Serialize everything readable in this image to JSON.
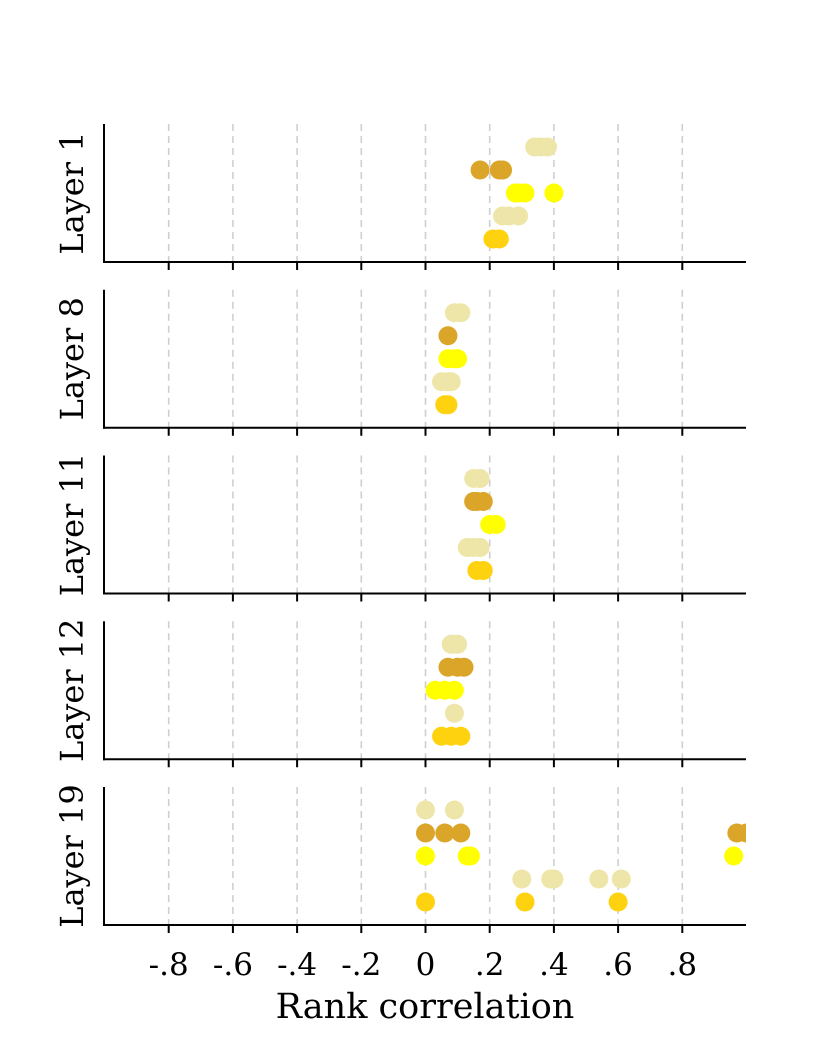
{
  "chart_data": {
    "type": "scatter",
    "xlabel": "Rank correlation",
    "xlim": [
      -1.0,
      1.0
    ],
    "xticks": [
      -0.8,
      -0.6,
      -0.4,
      -0.2,
      0,
      0.2,
      0.4,
      0.6,
      0.8
    ],
    "xtick_labels": [
      "-.8",
      "-.6",
      "-.4",
      "-.2",
      "0",
      ".2",
      ".4",
      ".6",
      ".8"
    ],
    "grid": "vertical dashed",
    "row_colors": [
      "#eee6a8",
      "#daa528",
      "#ffff00",
      "#eee6a8",
      "#ffd20f"
    ],
    "panels": [
      {
        "label": "Layer 1",
        "rows": [
          [
            0.34,
            0.36,
            0.38
          ],
          [
            0.17,
            0.23,
            0.24
          ],
          [
            0.28,
            0.29,
            0.31,
            0.4
          ],
          [
            0.24,
            0.26,
            0.29
          ],
          [
            0.21,
            0.23
          ]
        ]
      },
      {
        "label": "Layer 8",
        "rows": [
          [
            0.09,
            0.11
          ],
          [
            0.07
          ],
          [
            0.07,
            0.09,
            0.1
          ],
          [
            0.05,
            0.07,
            0.08
          ],
          [
            0.06,
            0.07
          ]
        ]
      },
      {
        "label": "Layer 11",
        "rows": [
          [
            0.15,
            0.17
          ],
          [
            0.15,
            0.16,
            0.18
          ],
          [
            0.2,
            0.22
          ],
          [
            0.13,
            0.15,
            0.17
          ],
          [
            0.16,
            0.18
          ]
        ]
      },
      {
        "label": "Layer 12",
        "rows": [
          [
            0.08,
            0.09,
            0.1
          ],
          [
            0.07,
            0.1,
            0.12
          ],
          [
            0.03,
            0.06,
            0.09
          ],
          [
            0.09
          ],
          [
            0.05,
            0.08,
            0.11
          ]
        ]
      },
      {
        "label": "Layer 19",
        "rows": [
          [
            0.0,
            0.09
          ],
          [
            0.0,
            0.06,
            0.11,
            0.97,
            1.0
          ],
          [
            0.0,
            0.13,
            0.14,
            0.96
          ],
          [
            0.3,
            0.39,
            0.4,
            0.54,
            0.61
          ],
          [
            0.0,
            0.31,
            0.6
          ]
        ]
      }
    ]
  }
}
